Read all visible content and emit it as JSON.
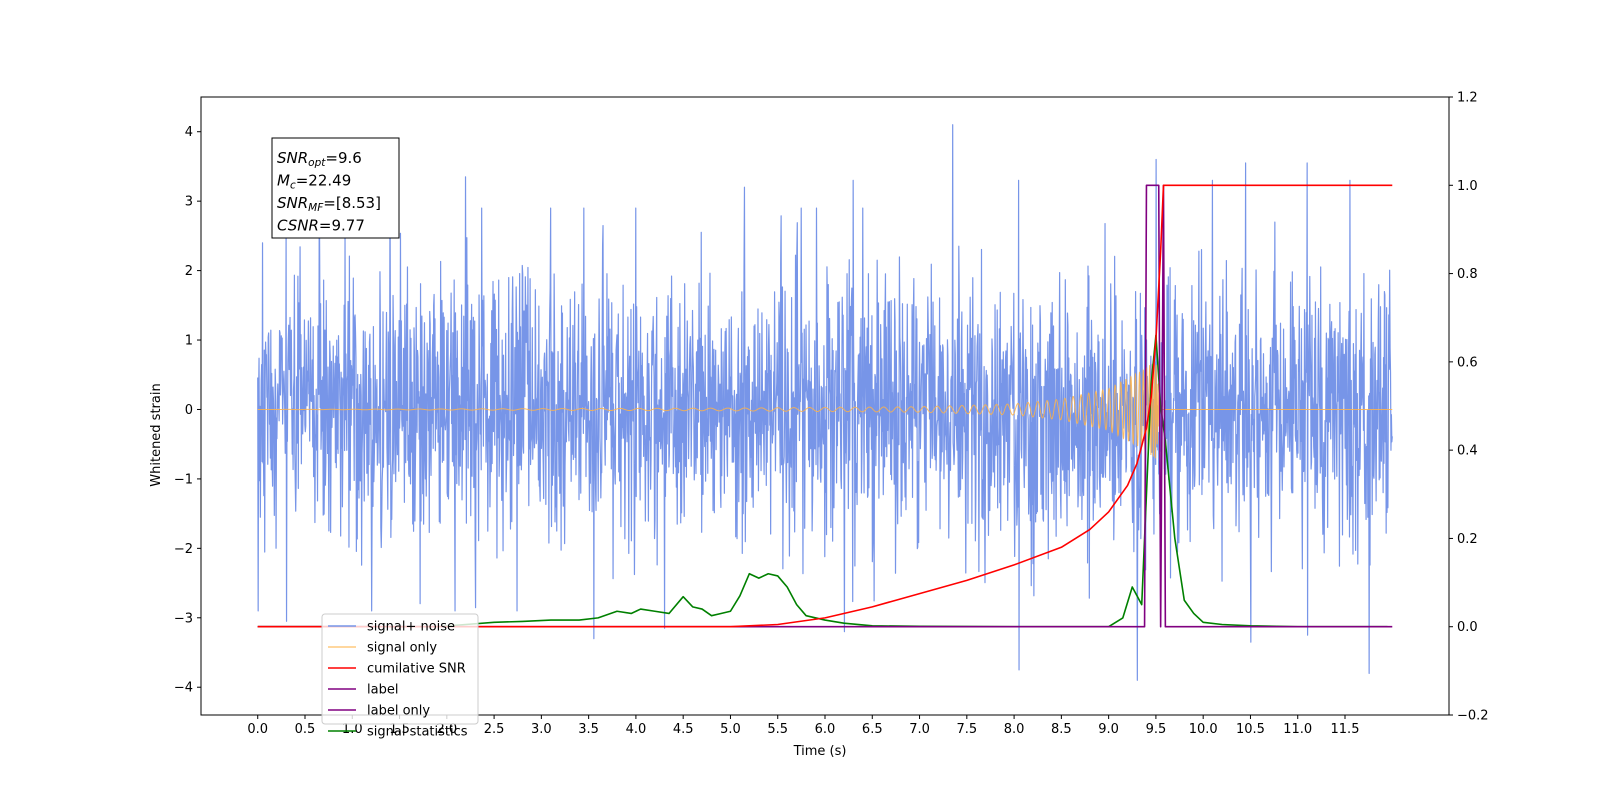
{
  "chart_data": {
    "type": "line",
    "title": "",
    "xlabel": "Time (s)",
    "ylabel": "Whitened strain",
    "y2label": "",
    "xlim": [
      -0.6,
      12.6
    ],
    "ylim": [
      -4.4,
      4.5
    ],
    "y2lim": [
      -0.2,
      1.2
    ],
    "grid": false,
    "legend_position": "lower-left",
    "x_ticks": [
      "0.0",
      "0.5",
      "1.0",
      "1.5",
      "2.0",
      "2.5",
      "3.0",
      "3.5",
      "4.0",
      "4.5",
      "5.0",
      "5.5",
      "6.0",
      "6.5",
      "7.0",
      "7.5",
      "8.0",
      "8.5",
      "9.0",
      "9.5",
      "10.0",
      "10.5",
      "11.0",
      "11.5"
    ],
    "y_ticks": [
      "4",
      "3",
      "2",
      "1",
      "0",
      "−1",
      "−2",
      "−3",
      "−4"
    ],
    "y2_ticks": [
      "1.2",
      "1.0",
      "0.8",
      "0.6",
      "0.4",
      "0.2",
      "0.0",
      "−0.2"
    ],
    "annotation": {
      "lines": [
        {
          "label": "SNR",
          "sub": "opt",
          "value": "=9.6"
        },
        {
          "label": "M",
          "sub": "c",
          "value": "=22.49"
        },
        {
          "label": "SNR",
          "sub": "MF",
          "value": "=[8.53]"
        },
        {
          "label": "CSNR",
          "sub": "",
          "value": "=9.77"
        }
      ]
    },
    "series": [
      {
        "name": "signal+ noise",
        "axis": "left",
        "color": "#7795e8",
        "x_range": [
          0.0,
          12.0
        ],
        "std": 1.0,
        "peaks": [
          [
            0.05,
            2.4
          ],
          [
            0.3,
            2.6
          ],
          [
            0.65,
            3.2
          ],
          [
            1.4,
            3.2
          ],
          [
            2.2,
            3.35
          ],
          [
            3.1,
            2.9
          ],
          [
            4.0,
            2.9
          ],
          [
            5.15,
            3.2
          ],
          [
            6.3,
            3.3
          ],
          [
            7.35,
            4.1
          ],
          [
            8.05,
            3.3
          ],
          [
            9.5,
            3.6
          ],
          [
            10.1,
            3.3
          ],
          [
            10.45,
            3.55
          ],
          [
            11.1,
            3.55
          ],
          [
            11.55,
            3.3
          ]
        ],
        "troughs": [
          [
            0.0,
            -2.9
          ],
          [
            0.3,
            -3.05
          ],
          [
            1.2,
            -2.9
          ],
          [
            3.55,
            -3.3
          ],
          [
            4.3,
            -3.15
          ],
          [
            6.2,
            -3.2
          ],
          [
            8.05,
            -3.75
          ],
          [
            9.3,
            -3.9
          ],
          [
            10.5,
            -3.35
          ],
          [
            11.1,
            -3.25
          ],
          [
            11.75,
            -3.8
          ]
        ]
      },
      {
        "name": "signal only",
        "axis": "left",
        "color": "#ffb347",
        "amplitude_profile": {
          "x": [
            0.0,
            5.0,
            7.0,
            8.0,
            8.5,
            9.0,
            9.2,
            9.4,
            9.5,
            9.55
          ],
          "y": [
            0.0,
            0.02,
            0.04,
            0.08,
            0.15,
            0.3,
            0.45,
            0.6,
            0.72,
            0.0
          ]
        },
        "end_x": 12.0
      },
      {
        "name": "cumilative SNR",
        "axis": "right",
        "color": "#ff0000",
        "x": [
          0.0,
          5.0,
          5.5,
          6.0,
          6.5,
          7.0,
          7.5,
          8.0,
          8.5,
          8.8,
          9.0,
          9.2,
          9.3,
          9.4,
          9.45,
          9.5,
          9.55,
          9.58,
          12.0
        ],
        "y": [
          0.0,
          0.0,
          0.005,
          0.02,
          0.045,
          0.075,
          0.105,
          0.14,
          0.18,
          0.22,
          0.26,
          0.32,
          0.37,
          0.45,
          0.52,
          0.65,
          0.85,
          1.0,
          1.0
        ]
      },
      {
        "name": "label",
        "axis": "right",
        "color": "#800080",
        "x": [
          0.0,
          9.38,
          9.4,
          9.53,
          9.55,
          9.58,
          9.6,
          12.0
        ],
        "y": [
          0.0,
          0.0,
          1.0,
          1.0,
          0.0,
          1.0,
          0.0,
          0.0
        ]
      },
      {
        "name": "label only",
        "axis": "right",
        "color": "#800080",
        "x": [],
        "y": []
      },
      {
        "name": "signal statistics",
        "axis": "right",
        "color": "#008000",
        "x": [
          0.0,
          1.9,
          2.2,
          2.5,
          2.8,
          3.1,
          3.4,
          3.6,
          3.8,
          3.95,
          4.05,
          4.2,
          4.35,
          4.5,
          4.6,
          4.7,
          4.8,
          4.9,
          5.0,
          5.1,
          5.2,
          5.3,
          5.4,
          5.5,
          5.6,
          5.7,
          5.8,
          6.0,
          6.2,
          6.5,
          7.0,
          8.0,
          9.0,
          9.15,
          9.25,
          9.35,
          9.4,
          9.45,
          9.5,
          9.55,
          9.6,
          9.7,
          9.8,
          9.9,
          10.0,
          10.2,
          10.5,
          11.0,
          11.95
        ],
        "y": [
          0.0,
          0.0,
          0.005,
          0.01,
          0.012,
          0.015,
          0.015,
          0.02,
          0.035,
          0.03,
          0.04,
          0.035,
          0.03,
          0.068,
          0.045,
          0.04,
          0.025,
          0.03,
          0.035,
          0.07,
          0.12,
          0.11,
          0.12,
          0.115,
          0.09,
          0.05,
          0.025,
          0.015,
          0.008,
          0.002,
          0.001,
          0.0,
          0.0,
          0.02,
          0.09,
          0.05,
          0.3,
          0.55,
          0.66,
          0.5,
          0.42,
          0.2,
          0.06,
          0.03,
          0.01,
          0.005,
          0.002,
          0.0,
          0.0
        ]
      }
    ]
  }
}
